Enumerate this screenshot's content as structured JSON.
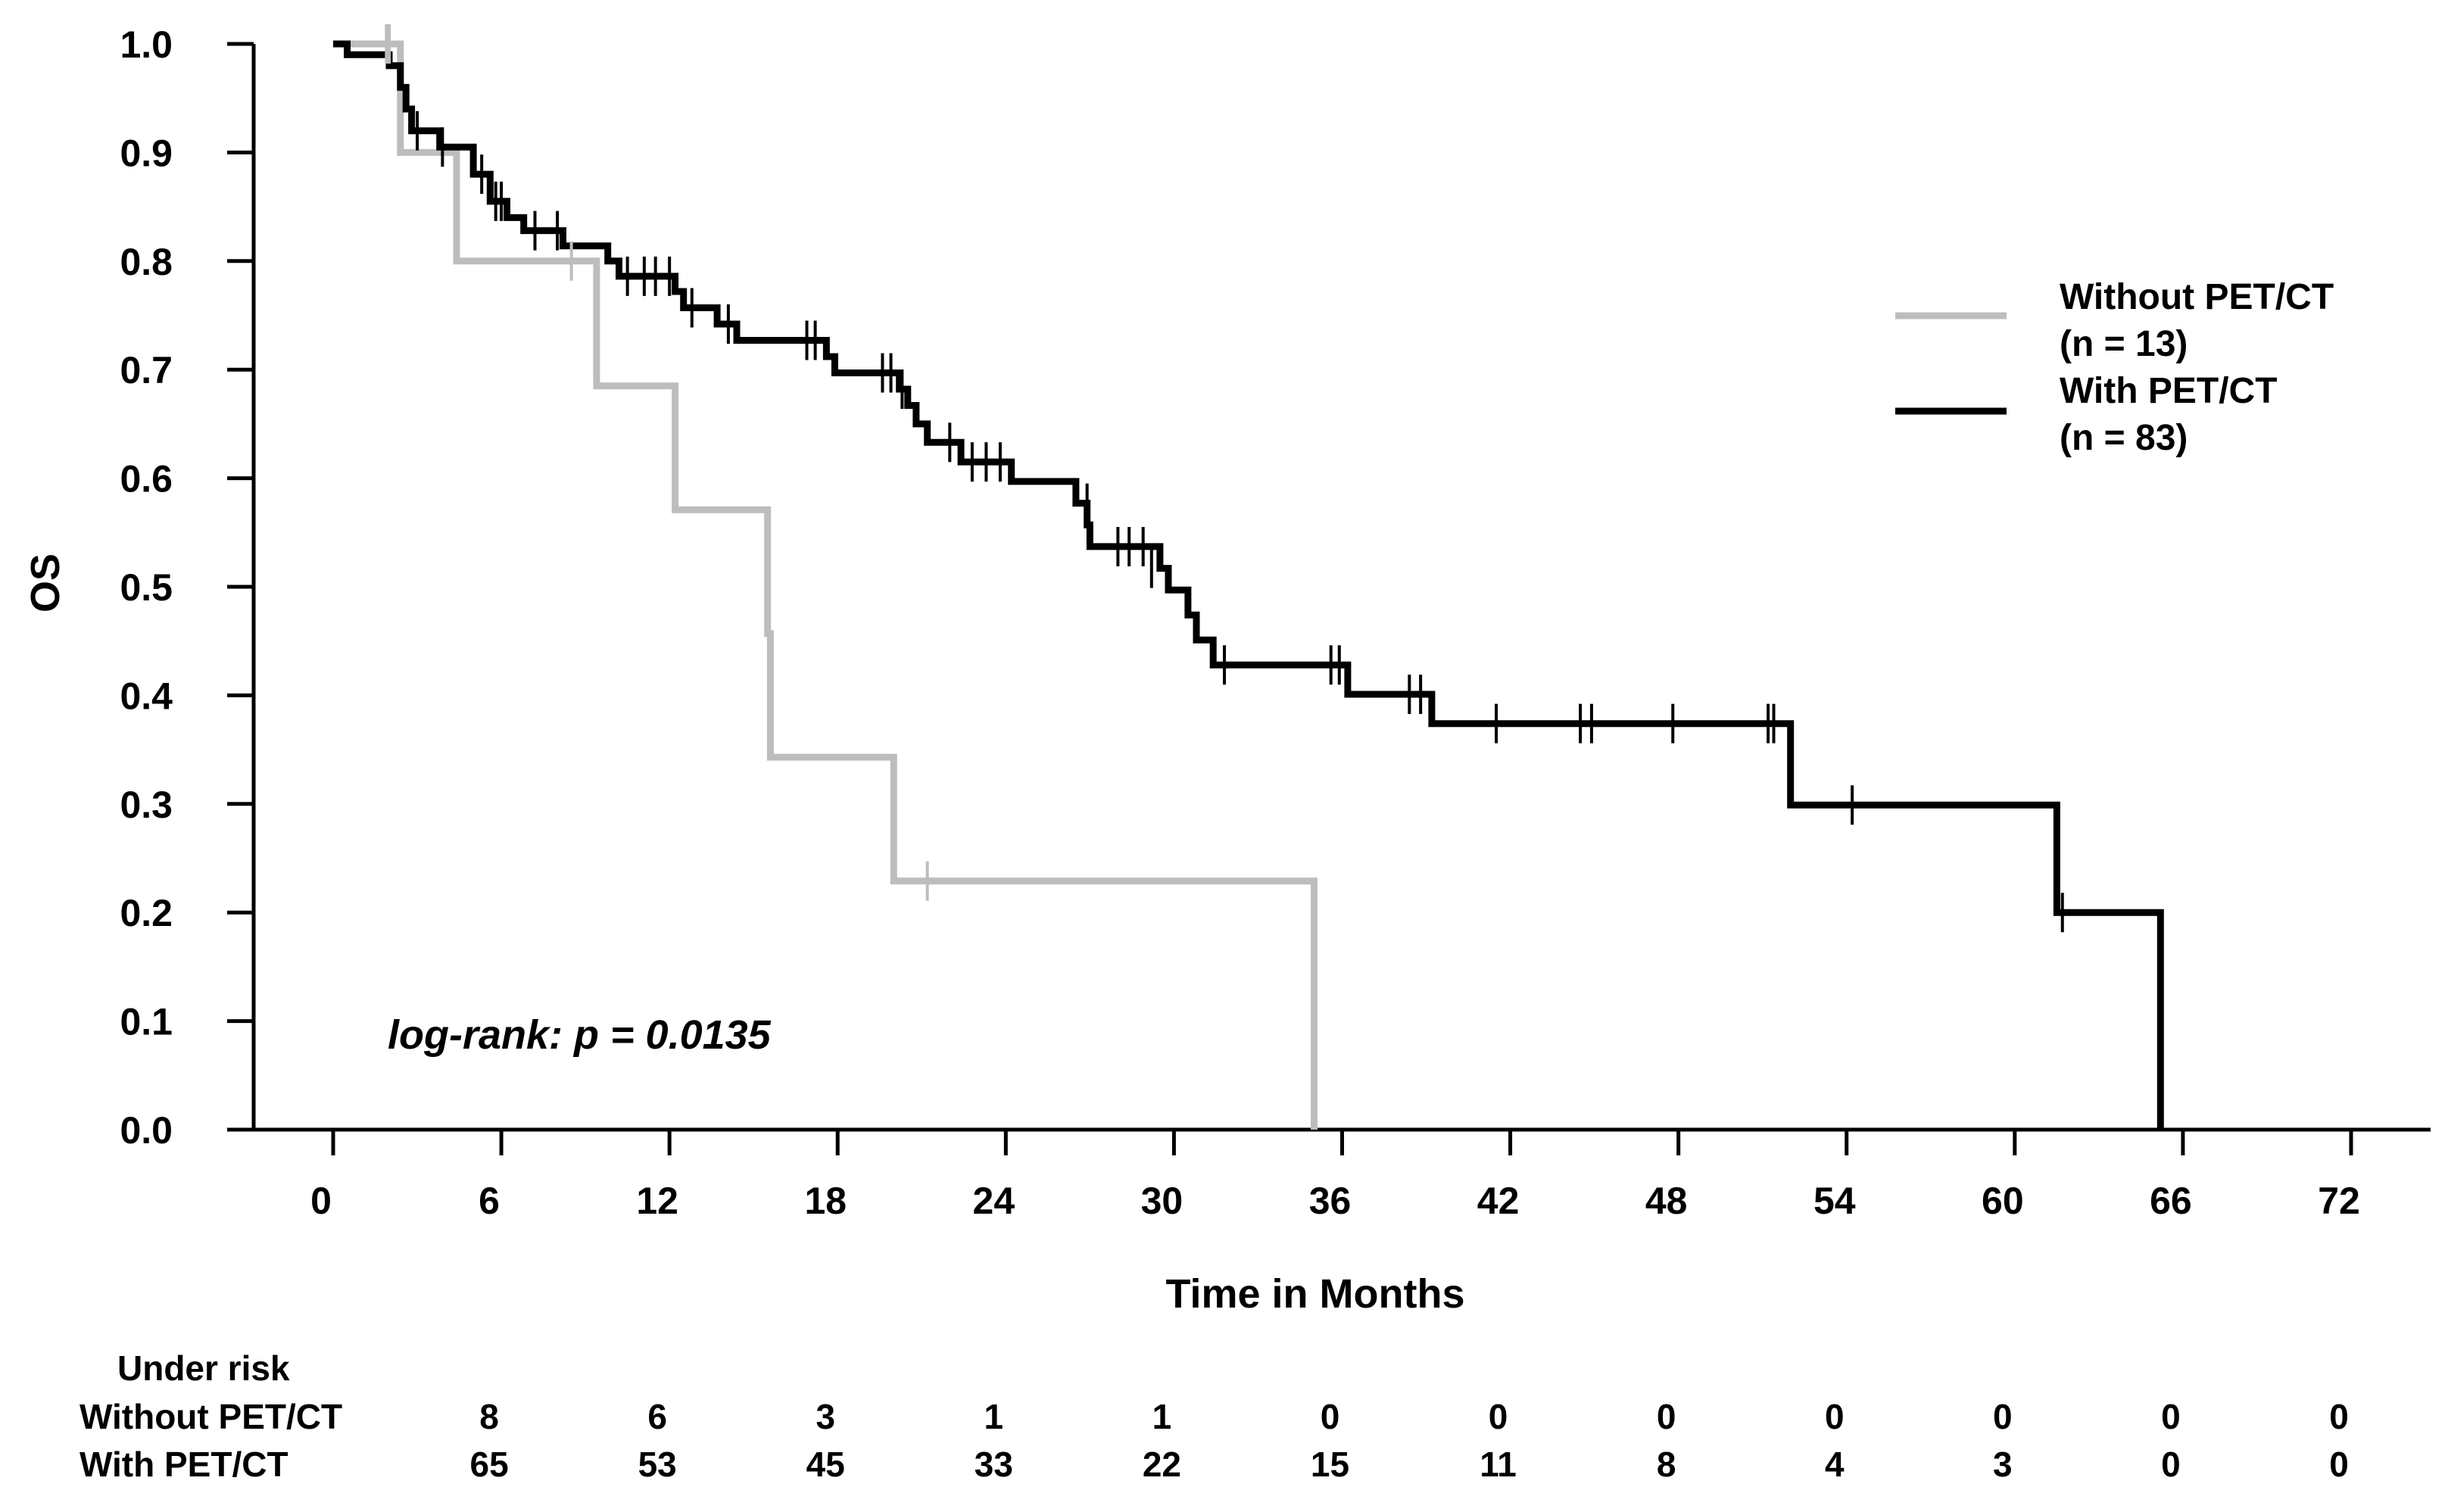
{
  "chart_data": {
    "type": "line",
    "subtype": "kaplan-meier",
    "title": "",
    "xlabel": "Time in Months",
    "ylabel": "OS",
    "xlim": [
      0,
      72
    ],
    "ylim": [
      0,
      1
    ],
    "xticks": [
      "0",
      "6",
      "12",
      "18",
      "24",
      "30",
      "36",
      "42",
      "48",
      "54",
      "60",
      "66",
      "72"
    ],
    "yticks": [
      "0.0",
      "0.1",
      "0.2",
      "0.3",
      "0.4",
      "0.5",
      "0.6",
      "0.7",
      "0.8",
      "0.9",
      "1.0"
    ],
    "annotation": "log-rank: p = 0.0135",
    "legend_position": "right",
    "series": [
      {
        "name": "Without PET/CT",
        "n_label": "(n = 13)",
        "color": "#bdbdbd",
        "steps": [
          [
            0,
            1.0
          ],
          [
            2.4,
            1.0
          ],
          [
            2.4,
            0.9
          ],
          [
            4.4,
            0.9
          ],
          [
            4.4,
            0.8
          ],
          [
            9.4,
            0.8
          ],
          [
            9.4,
            0.685
          ],
          [
            12.2,
            0.685
          ],
          [
            12.2,
            0.571
          ],
          [
            15.5,
            0.571
          ],
          [
            15.5,
            0.457
          ],
          [
            15.6,
            0.457
          ],
          [
            15.6,
            0.343
          ],
          [
            20.0,
            0.343
          ],
          [
            20.0,
            0.229
          ],
          [
            35.0,
            0.229
          ],
          [
            35.0,
            0.0
          ]
        ],
        "censors": [
          [
            1.9,
            1.0
          ],
          [
            2.0,
            1.0
          ],
          [
            8.5,
            0.8
          ],
          [
            21.2,
            0.229
          ]
        ]
      },
      {
        "name": "With PET/CT",
        "n_label": "(n = 83)",
        "color": "#000000",
        "steps": [
          [
            0,
            1.0
          ],
          [
            0.5,
            1.0
          ],
          [
            0.5,
            0.99
          ],
          [
            2.0,
            0.99
          ],
          [
            2.0,
            0.98
          ],
          [
            2.4,
            0.98
          ],
          [
            2.4,
            0.96
          ],
          [
            2.6,
            0.96
          ],
          [
            2.6,
            0.94
          ],
          [
            2.8,
            0.94
          ],
          [
            2.8,
            0.92
          ],
          [
            3.8,
            0.92
          ],
          [
            3.8,
            0.905
          ],
          [
            5.0,
            0.905
          ],
          [
            5.0,
            0.88
          ],
          [
            5.6,
            0.88
          ],
          [
            5.6,
            0.855
          ],
          [
            6.2,
            0.855
          ],
          [
            6.2,
            0.84
          ],
          [
            6.8,
            0.84
          ],
          [
            6.8,
            0.828
          ],
          [
            8.2,
            0.828
          ],
          [
            8.2,
            0.814
          ],
          [
            9.8,
            0.814
          ],
          [
            9.8,
            0.8
          ],
          [
            10.2,
            0.8
          ],
          [
            10.2,
            0.786
          ],
          [
            12.2,
            0.786
          ],
          [
            12.2,
            0.772
          ],
          [
            12.5,
            0.772
          ],
          [
            12.5,
            0.757
          ],
          [
            13.7,
            0.757
          ],
          [
            13.7,
            0.742
          ],
          [
            14.4,
            0.742
          ],
          [
            14.4,
            0.727
          ],
          [
            17.6,
            0.727
          ],
          [
            17.6,
            0.712
          ],
          [
            17.9,
            0.712
          ],
          [
            17.9,
            0.697
          ],
          [
            20.2,
            0.697
          ],
          [
            20.2,
            0.682
          ],
          [
            20.5,
            0.682
          ],
          [
            20.5,
            0.667
          ],
          [
            20.8,
            0.667
          ],
          [
            20.8,
            0.65
          ],
          [
            21.2,
            0.65
          ],
          [
            21.2,
            0.633
          ],
          [
            22.4,
            0.633
          ],
          [
            22.4,
            0.615
          ],
          [
            24.2,
            0.615
          ],
          [
            24.2,
            0.597
          ],
          [
            26.5,
            0.597
          ],
          [
            26.5,
            0.577
          ],
          [
            26.9,
            0.577
          ],
          [
            26.9,
            0.557
          ],
          [
            27.0,
            0.557
          ],
          [
            27.0,
            0.537
          ],
          [
            29.5,
            0.537
          ],
          [
            29.5,
            0.517
          ],
          [
            29.8,
            0.517
          ],
          [
            29.8,
            0.497
          ],
          [
            30.5,
            0.497
          ],
          [
            30.5,
            0.474
          ],
          [
            30.8,
            0.474
          ],
          [
            30.8,
            0.451
          ],
          [
            31.4,
            0.451
          ],
          [
            31.4,
            0.428
          ],
          [
            36.2,
            0.428
          ],
          [
            36.2,
            0.401
          ],
          [
            39.2,
            0.401
          ],
          [
            39.2,
            0.374
          ],
          [
            52.0,
            0.374
          ],
          [
            52.0,
            0.299
          ],
          [
            61.5,
            0.299
          ],
          [
            61.5,
            0.2
          ],
          [
            65.2,
            0.2
          ],
          [
            65.2,
            0.0
          ]
        ],
        "censors": [
          [
            3.0,
            0.92
          ],
          [
            3.9,
            0.905
          ],
          [
            5.3,
            0.88
          ],
          [
            5.8,
            0.855
          ],
          [
            6.0,
            0.855
          ],
          [
            7.2,
            0.828
          ],
          [
            8.0,
            0.828
          ],
          [
            10.5,
            0.786
          ],
          [
            11.1,
            0.786
          ],
          [
            11.5,
            0.786
          ],
          [
            12.0,
            0.786
          ],
          [
            12.8,
            0.757
          ],
          [
            14.1,
            0.742
          ],
          [
            16.9,
            0.727
          ],
          [
            17.2,
            0.727
          ],
          [
            19.6,
            0.697
          ],
          [
            19.9,
            0.697
          ],
          [
            20.3,
            0.682
          ],
          [
            22.0,
            0.633
          ],
          [
            22.8,
            0.615
          ],
          [
            23.3,
            0.615
          ],
          [
            23.8,
            0.615
          ],
          [
            26.9,
            0.577
          ],
          [
            28.0,
            0.537
          ],
          [
            28.4,
            0.537
          ],
          [
            28.9,
            0.537
          ],
          [
            29.2,
            0.517
          ],
          [
            31.8,
            0.428
          ],
          [
            35.6,
            0.428
          ],
          [
            35.9,
            0.428
          ],
          [
            38.4,
            0.401
          ],
          [
            38.8,
            0.401
          ],
          [
            41.5,
            0.374
          ],
          [
            44.5,
            0.374
          ],
          [
            44.9,
            0.374
          ],
          [
            47.8,
            0.374
          ],
          [
            51.2,
            0.374
          ],
          [
            51.4,
            0.374
          ],
          [
            54.2,
            0.299
          ],
          [
            61.7,
            0.2
          ]
        ]
      }
    ],
    "risk_table": {
      "title": "Under risk",
      "rows": [
        {
          "label": "Without PET/CT",
          "values": [
            "8",
            "6",
            "3",
            "1",
            "1",
            "0",
            "0",
            "0",
            "0",
            "0",
            "0",
            "0"
          ]
        },
        {
          "label": "With PET/CT",
          "values": [
            "65",
            "53",
            "45",
            "33",
            "22",
            "15",
            "11",
            "8",
            "4",
            "3",
            "0",
            "0"
          ]
        }
      ]
    }
  }
}
